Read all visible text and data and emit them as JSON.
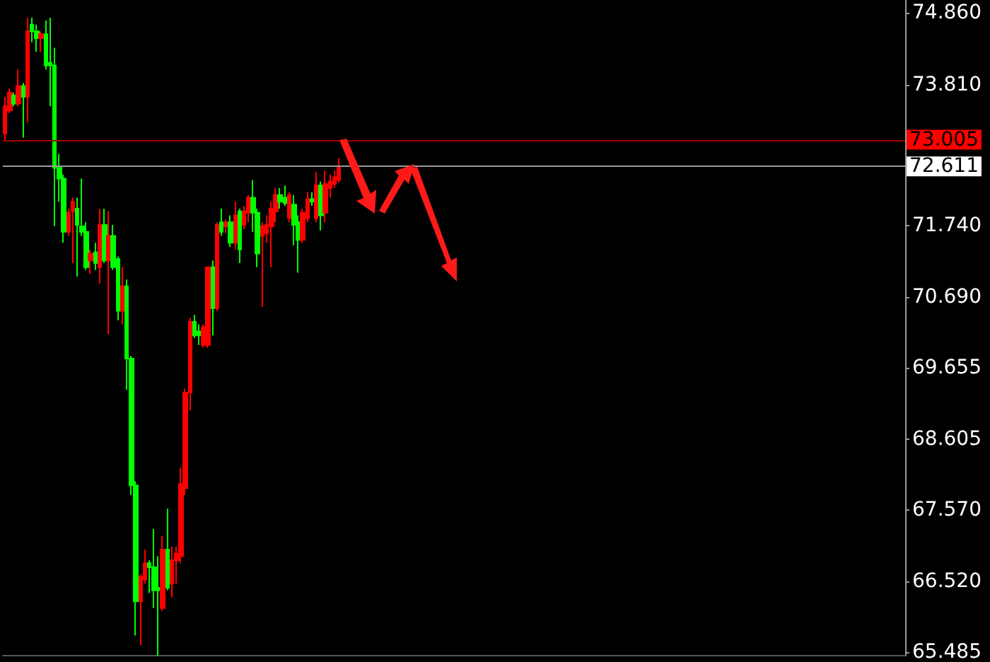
{
  "chart_data": {
    "type": "candlestick",
    "colors": [
      "#ff0000",
      "#ff0000",
      "#00ff00",
      "#ff0000",
      "#00ff00",
      "#ff0000",
      "#00ff00",
      "#00ff00",
      "#ff0000",
      "#00ff00",
      "#00ff00",
      "#00ff00",
      "#00ff00",
      "#00ff00",
      "#ff0000",
      "#ff0000",
      "#00ff00",
      "#00ff00",
      "#00ff00",
      "#ff0000",
      "#00ff00",
      "#ff0000",
      "#00ff00",
      "#ff0000",
      "#00ff00",
      "#00ff00",
      "#ff0000",
      "#00ff00",
      "#00ff00",
      "#00ff00",
      "#ff0000",
      "#ff0000",
      "#00ff00",
      "#00ff00",
      "#00ff00",
      "#ff0000",
      "#00ff00",
      "#ff0000",
      "#ff0000",
      "#ff0000",
      "#ff0000",
      "#ff0000",
      "#00ff00",
      "#00ff00",
      "#ff0000",
      "#ff0000",
      "#00ff00",
      "#ff0000",
      "#00ff00",
      "#ff0000",
      "#00ff00",
      "#ff0000",
      "#00ff00",
      "#ff0000",
      "#ff0000",
      "#00ff00",
      "#00ff00",
      "#ff0000",
      "#ff0000",
      "#ff0000",
      "#ff0000",
      "#00ff00",
      "#00ff00",
      "#ff0000",
      "#00ff00",
      "#00ff00",
      "#ff0000",
      "#ff0000",
      "#00ff00",
      "#ff0000",
      "#00ff00",
      "#ff0000",
      "#ff0000",
      "#ff0000",
      "#ff0000",
      null,
      null,
      null,
      null,
      null,
      null,
      null,
      null,
      null,
      null,
      null,
      null,
      null,
      null,
      null,
      null,
      null,
      null,
      null,
      null,
      null,
      null,
      null,
      null,
      null,
      null,
      null,
      null,
      null,
      null,
      null,
      null,
      null,
      null,
      null,
      null,
      null,
      null,
      null,
      null,
      null,
      null,
      null,
      null,
      null,
      null,
      null,
      null,
      null,
      null,
      null,
      null,
      null,
      null,
      null,
      null,
      null,
      null,
      null,
      null,
      null,
      null,
      null,
      null,
      null,
      null,
      null,
      null,
      null,
      null,
      null,
      null,
      null,
      null,
      null,
      null,
      null,
      null,
      null,
      null,
      null,
      null,
      null,
      null,
      null,
      null,
      null,
      null,
      null,
      null,
      null,
      null,
      null,
      null,
      null,
      null,
      null,
      null,
      null,
      null,
      null,
      null,
      null,
      null,
      null,
      null,
      null,
      null,
      null,
      null,
      null,
      null,
      null,
      null,
      null,
      null,
      null,
      null,
      null,
      null,
      null,
      null,
      null,
      null,
      null
    ],
    "categories": [
      null,
      null,
      null,
      null,
      null,
      null,
      null,
      null,
      null,
      null,
      null,
      null,
      null,
      null,
      null,
      null,
      null,
      null,
      null,
      null,
      null,
      null,
      null,
      null,
      null,
      null,
      null,
      null,
      null,
      null,
      null,
      null,
      null,
      null,
      null,
      null,
      null,
      null,
      null,
      null,
      null,
      null,
      null,
      null,
      null,
      null,
      null,
      null,
      null,
      null,
      null,
      null,
      null,
      null,
      null,
      null,
      null,
      null,
      null,
      null,
      null,
      null,
      null,
      null,
      null,
      null,
      null,
      null,
      null,
      null,
      null,
      null,
      null,
      null,
      null,
      null,
      null,
      null,
      null,
      null,
      null,
      null,
      null,
      null,
      null,
      null,
      null,
      null,
      null,
      null,
      null,
      null,
      null,
      null,
      null,
      null,
      null,
      null,
      null,
      null,
      null,
      null,
      null,
      null,
      null,
      null,
      null,
      null,
      null,
      null,
      null,
      null,
      null,
      null,
      null,
      null,
      null,
      null,
      null,
      null,
      null,
      null,
      null,
      null,
      null,
      null,
      null,
      null,
      null,
      null,
      null,
      null,
      null,
      null,
      null,
      null,
      null,
      null,
      null,
      null,
      null,
      null,
      null,
      null,
      null,
      null,
      null,
      null,
      null,
      null,
      null,
      null,
      null,
      null,
      null,
      null,
      null,
      null,
      null,
      null,
      null,
      null,
      null,
      null,
      null,
      null,
      null,
      null,
      null,
      null,
      null,
      null,
      null,
      null,
      null,
      null,
      null,
      null,
      null,
      null,
      null,
      null,
      null,
      null,
      null,
      null,
      null,
      null,
      null,
      null,
      null,
      null,
      null,
      null,
      null,
      null,
      null,
      null,
      null,
      null
    ],
    "ohlc": [
      [
        73.09,
        73.63,
        72.99,
        73.49
      ],
      [
        73.43,
        73.75,
        73.39,
        73.69
      ],
      [
        73.65,
        73.69,
        73.49,
        73.53
      ],
      [
        73.53,
        74.03,
        73.49,
        73.79
      ],
      [
        73.79,
        73.83,
        73.03,
        73.63
      ],
      [
        73.63,
        74.79,
        73.25,
        74.59
      ],
      [
        74.69,
        74.79,
        74.43,
        74.59
      ],
      [
        74.59,
        74.69,
        74.29,
        74.49
      ],
      [
        74.49,
        74.59,
        74.29,
        74.55
      ],
      [
        74.55,
        74.75,
        74.03,
        74.09
      ],
      [
        74.13,
        74.79,
        73.49,
        74.09
      ],
      [
        74.09,
        74.35,
        71.73,
        72.59
      ],
      [
        72.59,
        72.79,
        72.09,
        72.43
      ],
      [
        72.43,
        72.49,
        71.49,
        71.65
      ],
      [
        71.65,
        71.99,
        71.59,
        71.93
      ],
      [
        71.95,
        72.15,
        71.19,
        72.09
      ],
      [
        71.99,
        72.15,
        70.99,
        71.75
      ],
      [
        71.73,
        72.43,
        71.59,
        71.65
      ],
      [
        71.65,
        71.79,
        71.09,
        71.13
      ],
      [
        71.23,
        71.39,
        71.03,
        71.33
      ],
      [
        71.35,
        71.49,
        71.09,
        71.19
      ],
      [
        71.13,
        71.99,
        70.89,
        71.75
      ],
      [
        71.75,
        71.99,
        71.19,
        71.23
      ],
      [
        71.23,
        71.95,
        70.15,
        71.59
      ],
      [
        71.59,
        71.75,
        71.09,
        71.13
      ],
      [
        71.25,
        71.29,
        70.35,
        70.49
      ],
      [
        70.49,
        71.13,
        70.29,
        70.85
      ],
      [
        70.85,
        70.95,
        69.33,
        69.79
      ],
      [
        69.79,
        69.83,
        67.79,
        67.93
      ],
      [
        67.93,
        67.99,
        65.73,
        66.23
      ],
      [
        66.23,
        66.63,
        65.59,
        66.59
      ],
      [
        66.55,
        66.99,
        66.49,
        66.79
      ],
      [
        66.79,
        66.83,
        66.35,
        66.73
      ],
      [
        66.73,
        67.29,
        66.13,
        66.39
      ],
      [
        66.43,
        66.89,
        65.43,
        66.39
      ],
      [
        66.13,
        67.19,
        66.09,
        66.99
      ],
      [
        66.99,
        67.59,
        66.39,
        66.43
      ],
      [
        66.49,
        67.03,
        66.29,
        66.83
      ],
      [
        66.83,
        67.03,
        66.49,
        66.93
      ],
      [
        66.89,
        68.19,
        66.79,
        67.95
      ],
      [
        67.89,
        69.35,
        67.79,
        69.29
      ],
      [
        69.29,
        70.39,
        69.03,
        70.33
      ],
      [
        70.33,
        70.43,
        70.09,
        70.13
      ],
      [
        70.19,
        70.29,
        69.99,
        70.13
      ],
      [
        69.99,
        70.29,
        69.95,
        70.25
      ],
      [
        69.99,
        71.13,
        69.95,
        71.13
      ],
      [
        71.13,
        71.23,
        70.13,
        70.53
      ],
      [
        70.53,
        71.79,
        70.49,
        71.75
      ],
      [
        71.79,
        71.99,
        71.59,
        71.65
      ],
      [
        71.73,
        71.83,
        71.63,
        71.79
      ],
      [
        71.79,
        71.89,
        71.43,
        71.49
      ],
      [
        71.49,
        72.09,
        71.39,
        71.89
      ],
      [
        71.95,
        71.99,
        71.19,
        71.39
      ],
      [
        71.75,
        72.03,
        71.69,
        71.95
      ],
      [
        71.93,
        72.19,
        71.79,
        72.15
      ],
      [
        72.15,
        72.41,
        71.65,
        71.93
      ],
      [
        71.93,
        71.99,
        71.13,
        71.33
      ],
      [
        71.59,
        71.79,
        70.55,
        71.73
      ],
      [
        71.63,
        71.89,
        71.49,
        71.75
      ],
      [
        71.73,
        72.09,
        71.13,
        71.99
      ],
      [
        71.95,
        72.29,
        71.79,
        72.19
      ],
      [
        72.19,
        72.29,
        71.99,
        72.09
      ],
      [
        72.15,
        72.33,
        72.03,
        72.07
      ],
      [
        71.85,
        72.23,
        71.79,
        72.19
      ],
      [
        72.05,
        72.19,
        71.45,
        71.75
      ],
      [
        71.79,
        71.89,
        71.05,
        71.53
      ],
      [
        71.53,
        71.99,
        71.49,
        71.93
      ],
      [
        71.85,
        72.23,
        71.79,
        72.13
      ],
      [
        72.13,
        72.23,
        72.03,
        72.09
      ],
      [
        71.85,
        72.53,
        71.79,
        72.33
      ],
      [
        72.33,
        72.39,
        71.67,
        71.89
      ],
      [
        71.93,
        72.55,
        71.79,
        72.35
      ],
      [
        72.29,
        72.49,
        72.15,
        72.39
      ],
      [
        72.35,
        72.55,
        72.29,
        72.45
      ],
      [
        72.41,
        72.73,
        72.37,
        72.59
      ],
      null,
      null,
      null,
      null,
      null,
      null,
      null,
      null,
      null,
      null,
      null,
      null,
      null,
      null,
      null,
      null,
      null,
      null,
      null,
      null,
      null,
      null,
      null,
      null,
      null,
      null,
      null,
      null,
      null,
      null,
      null,
      null,
      null,
      null,
      null,
      null,
      null,
      null,
      null,
      null,
      null,
      null,
      null,
      null,
      null,
      null,
      null,
      null,
      null,
      null,
      null,
      null,
      null,
      null,
      null,
      null,
      null,
      null,
      null,
      null,
      null,
      null,
      null,
      null,
      null,
      null,
      null,
      null,
      null,
      null,
      null,
      null,
      null,
      null,
      null,
      null,
      null,
      null,
      null,
      null,
      null,
      null,
      null,
      null,
      null,
      null,
      null,
      null,
      null,
      null,
      null,
      null,
      null,
      null,
      null,
      null,
      null,
      null,
      null,
      null,
      null,
      null,
      null,
      null,
      null,
      null,
      null,
      null,
      null,
      null,
      null,
      null,
      null,
      null,
      null,
      null,
      null,
      null,
      null,
      null,
      null,
      null,
      null,
      null,
      null
    ],
    "ylim": [
      65.43,
      75.05
    ],
    "yticks": [
      {
        "value": 65.485,
        "label": "65.485"
      },
      {
        "value": 66.52,
        "label": "66.520"
      },
      {
        "value": 67.57,
        "label": "67.570"
      },
      {
        "value": 68.605,
        "label": "68.605"
      },
      {
        "value": 69.655,
        "label": "69.655"
      },
      {
        "value": 70.69,
        "label": "70.690"
      },
      {
        "value": 71.74,
        "label": "71.740"
      },
      {
        "value": 73.81,
        "label": "73.810"
      },
      {
        "value": 74.86,
        "label": "74.860"
      }
    ],
    "ref_lines": [
      {
        "axis": "y",
        "value": 73.005,
        "label": "73.005",
        "color": "#a00000"
      },
      {
        "axis": "y",
        "value": 72.611,
        "label": "72.611",
        "color": "#9a9a9a"
      }
    ],
    "grid": false
  }
}
